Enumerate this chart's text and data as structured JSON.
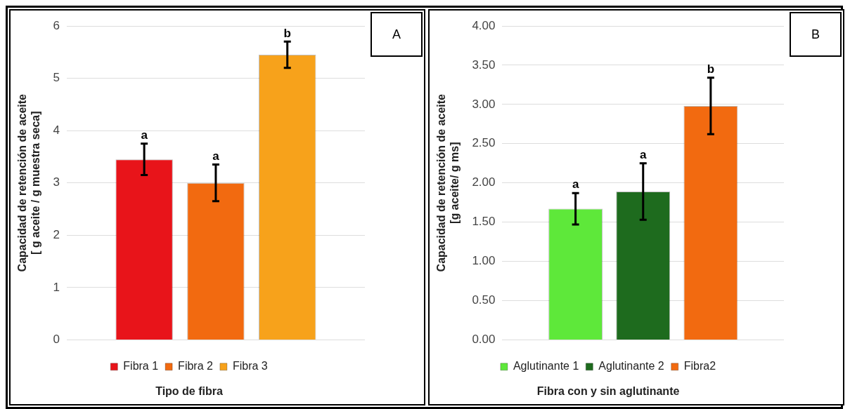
{
  "chart_data": [
    {
      "type": "bar",
      "categories": [
        null
      ],
      "xlabel": "Tipo de fibra",
      "ylabel": "Capacidad de retención de aceite\n[ g aceite / g muestra seca]",
      "annotations": [
        "A"
      ],
      "series": [
        {
          "name": "Fibra 1",
          "color": "#e8141a",
          "values": [
            3.45
          ],
          "errors": [
            0.3
          ],
          "value_labels": [
            "a"
          ]
        },
        {
          "name": "Fibra 2",
          "color": "#f26a10",
          "values": [
            3.0
          ],
          "errors": [
            0.35
          ],
          "value_labels": [
            "a"
          ]
        },
        {
          "name": "Fibra 3",
          "color": "#f7a21b",
          "values": [
            5.45
          ],
          "errors": [
            0.25
          ],
          "value_labels": [
            "b"
          ]
        }
      ],
      "ylim": [
        0,
        6
      ],
      "yticks": [
        0,
        1,
        2,
        3,
        4,
        5,
        6
      ],
      "grid": "y",
      "legend": "bottom"
    },
    {
      "type": "bar",
      "categories": [
        null
      ],
      "xlabel": "Fibra con y sin aglutinante",
      "ylabel": "Capacidad de retención de aceite\n[g aceite/ g ms]",
      "annotations": [
        "B"
      ],
      "series": [
        {
          "name": "Aglutinante 1",
          "color": "#5ee83a",
          "values": [
            1.67
          ],
          "errors": [
            0.2
          ],
          "value_labels": [
            "a"
          ]
        },
        {
          "name": "Aglutinante 2",
          "color": "#1e6b1e",
          "values": [
            1.89
          ],
          "errors": [
            0.36
          ],
          "value_labels": [
            "a"
          ]
        },
        {
          "name": "Fibra2",
          "color": "#f26a10",
          "values": [
            2.98
          ],
          "errors": [
            0.36
          ],
          "value_labels": [
            "b"
          ]
        }
      ],
      "ylim": [
        0,
        4
      ],
      "yticks": [
        {
          "value": 0,
          "label": "0.00"
        },
        {
          "value": 0.5,
          "label": "0.50"
        },
        {
          "value": 1,
          "label": "1.00"
        },
        {
          "value": 1.5,
          "label": "1.50"
        },
        {
          "value": 2,
          "label": "2.00"
        },
        {
          "value": 2.5,
          "label": "2.50"
        },
        {
          "value": 3,
          "label": "3.00"
        },
        {
          "value": 3.5,
          "label": "3.50"
        },
        {
          "value": 4,
          "label": "4.00"
        }
      ],
      "grid": "y",
      "legend": "bottom"
    }
  ]
}
